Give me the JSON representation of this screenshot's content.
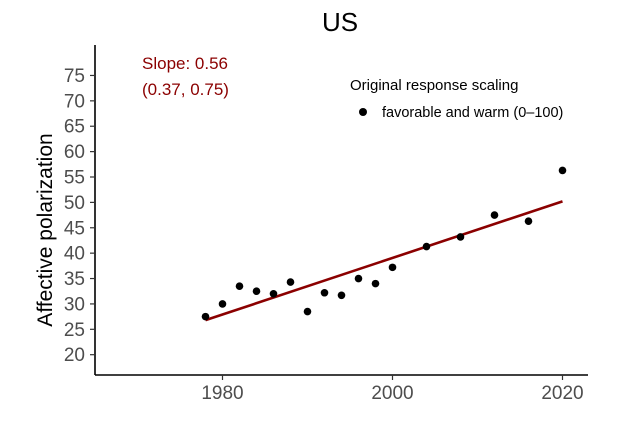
{
  "chart_data": {
    "type": "scatter",
    "title": "US",
    "xlabel": "",
    "ylabel": "Affective polarization",
    "xlim": [
      1965,
      2023
    ],
    "ylim": [
      16,
      81
    ],
    "x_ticks": [
      1980,
      2000,
      2020
    ],
    "y_ticks": [
      20,
      25,
      30,
      35,
      40,
      45,
      50,
      55,
      60,
      65,
      70,
      75
    ],
    "grid": false,
    "legend": {
      "title": "Original response scaling",
      "placement": "top-right",
      "entries": [
        "favorable and warm (0–100)"
      ]
    },
    "series": [
      {
        "name": "favorable and warm (0–100)",
        "x": [
          1978,
          1980,
          1982,
          1984,
          1986,
          1988,
          1990,
          1992,
          1994,
          1996,
          1998,
          2000,
          2004,
          2008,
          2012,
          2016,
          2020
        ],
        "y": [
          27.5,
          30.0,
          33.5,
          32.5,
          32.0,
          34.3,
          28.5,
          32.2,
          31.7,
          35.0,
          34.0,
          37.2,
          41.3,
          43.2,
          47.5,
          46.3,
          56.3
        ]
      }
    ],
    "fit_line": {
      "x": [
        1978,
        2020
      ],
      "y": [
        26.8,
        50.2
      ],
      "color": "#8b0000"
    },
    "annotation": {
      "slope_text": "Slope: 0.56",
      "ci_text": "(0.37, 0.75)",
      "color": "#8b0000"
    }
  }
}
